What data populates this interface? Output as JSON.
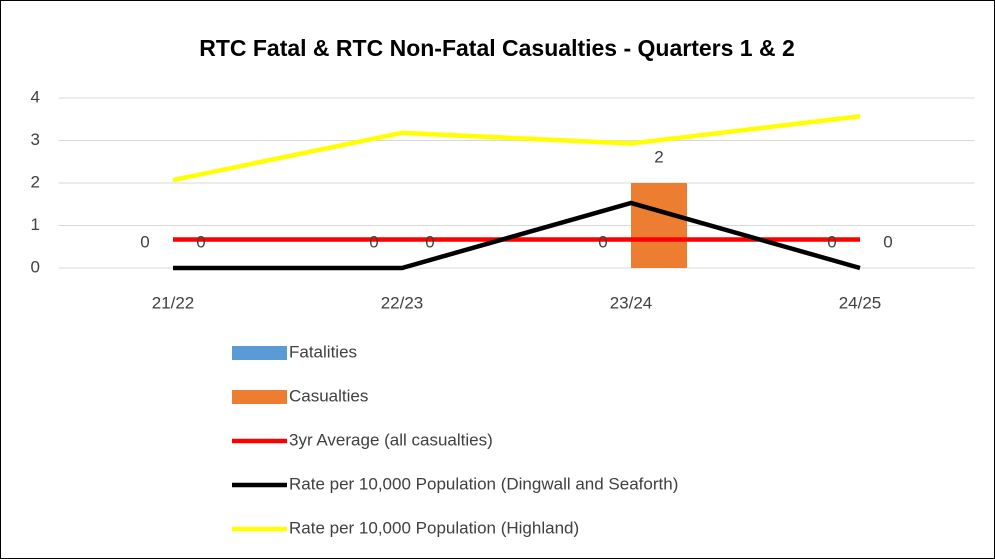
{
  "chart_data": {
    "type": "bar",
    "title": "RTC Fatal & RTC Non-Fatal Casualties - Quarters 1 & 2",
    "categories": [
      "21/22",
      "22/23",
      "23/24",
      "24/25"
    ],
    "series": [
      {
        "name": "Fatalities",
        "type": "bar",
        "color": "#5b9bd5",
        "values": [
          0,
          0,
          0,
          0
        ]
      },
      {
        "name": "Casualties",
        "type": "bar",
        "color": "#ed7d31",
        "values": [
          0,
          0,
          2,
          0
        ]
      },
      {
        "name": "3yr Average (all casualties)",
        "type": "line",
        "color": "#ff0000",
        "values": [
          0.67,
          0.67,
          0.67,
          0.67
        ]
      },
      {
        "name": "Rate per 10,000 Population (Dingwall and Seaforth)",
        "type": "line",
        "color": "#000000",
        "values": [
          0,
          0,
          1.53,
          0
        ]
      },
      {
        "name": "Rate per 10,000 Population (Highland)",
        "type": "line",
        "color": "#ffff00",
        "values": [
          2.07,
          3.18,
          2.93,
          3.57
        ]
      }
    ],
    "ylim": [
      0,
      4
    ],
    "yticks": [
      0,
      1,
      2,
      3,
      4
    ],
    "grid": true,
    "legend": "bottom"
  }
}
